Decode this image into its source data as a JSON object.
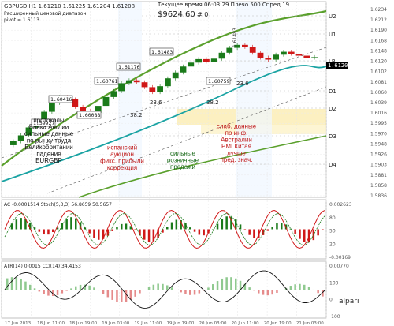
{
  "window": {
    "symbol_line": "GBPUSD,H1  1.61210 1.61225 1.61204 1.61208",
    "subtitle_line1": "Расширенный ценовой диапазон",
    "subtitle_line2": "pivot = 1.6113",
    "server_time": "Текущее время 06:03:29 Плечо 500 Спред 19",
    "balance": "$9624.60",
    "balance_suffix": "# 0",
    "watermark": "alpari"
  },
  "chart_data": [
    {
      "type": "candlestick",
      "title": "GBPUSD,H1",
      "price_axis_ticks": [
        "1.6234",
        "1.6212",
        "1.6190",
        "1.6168",
        "1.6148",
        "1.6120",
        "1.6102",
        "1.6081",
        "1.6060",
        "1.6039",
        "1.6016",
        "1.5995",
        "1.5970",
        "1.5948",
        "1.5926",
        "1.5903",
        "1.5881",
        "1.5858",
        "1.5836"
      ],
      "current_price": "1.61208",
      "price_range": [
        1.5836,
        1.6234
      ],
      "resistance_support_labels": [
        "U2",
        "U1",
        "LB",
        "D1",
        "D2",
        "D3",
        "D4"
      ],
      "price_markers": [
        "1.59927",
        "1.60416",
        "1.60088",
        "1.60761",
        "1.61176",
        "1.61483",
        "1.60759"
      ],
      "band_labels": [
        "38.2",
        "23.6",
        "38.2",
        "23.6"
      ],
      "vertical_note": "1.61483",
      "annotations": [
        "протоколы\nБанка Англии\nсильные данные\nпо рынку труда\nВеликобритании\nпадение\nEURGBP",
        "испанский\nаукцион\nфикс. прибыли\nкоррекция",
        "сильные\nрозничные\nпродажи",
        "слаб. данные\nпо инф.\nАвстралии\nPMI Китая\nлучше\nпред. знач."
      ],
      "close": [
        1.595,
        1.5962,
        1.5978,
        1.599,
        1.601,
        1.6028,
        1.604,
        1.6035,
        1.602,
        1.6012,
        1.6008,
        1.6022,
        1.604,
        1.6052,
        1.6068,
        1.6074,
        1.607,
        1.606,
        1.605,
        1.6062,
        1.6078,
        1.609,
        1.6102,
        1.611,
        1.6117,
        1.6112,
        1.6118,
        1.613,
        1.614,
        1.6146,
        1.6142,
        1.613,
        1.612,
        1.6116,
        1.6126,
        1.6132,
        1.6128,
        1.6124,
        1.612,
        1.6121
      ],
      "grid": true
    },
    {
      "type": "line",
      "title": "AC -0.0001514  Stoch(5,3,3) 56.8659 50.5657",
      "axis_ticks": [
        "0.002623",
        "80",
        "50",
        "20",
        "-0.00169"
      ],
      "grid": true
    },
    {
      "type": "line",
      "title": "ATR(14) 0.0015  CCI(14) 34.4153",
      "axis_ticks": [
        "0.00770",
        "100",
        "0",
        "-100"
      ],
      "grid": true
    }
  ],
  "time_axis": [
    "17 Jun 2013",
    "18 Jun 11:00",
    "18 Jun 19:00",
    "19 Jun 03:00",
    "19 Jun 11:00",
    "19 Jun 19:00",
    "20 Jun 03:00",
    "20 Jun 11:00",
    "20 Jun 19:00",
    "21 Jun 03:00"
  ],
  "colors": {
    "bull": "#1a7a1a",
    "bear": "#d01818",
    "channel_upper": "#5aa02c",
    "channel_mid": "#1aa3a3",
    "zone_fill": "#fbe9a6",
    "current_price_bg": "#000000"
  }
}
